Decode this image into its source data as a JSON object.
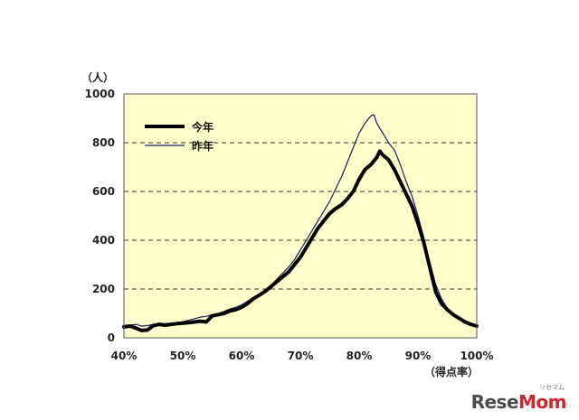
{
  "chart_data": {
    "type": "line",
    "y_unit": "（人）",
    "x_unit": "（得点率）",
    "ylim": [
      0,
      1000
    ],
    "xlim": [
      40,
      100
    ],
    "y_ticks": [
      0,
      200,
      400,
      600,
      800,
      1000
    ],
    "x_ticks": [
      40,
      50,
      60,
      70,
      80,
      90,
      100
    ],
    "x_tick_labels": [
      "40%",
      "50%",
      "60%",
      "70%",
      "80%",
      "90%",
      "100%"
    ],
    "grid": "horizontal-dashed",
    "legend_position": "top-left",
    "plot_background": "#ffffcc",
    "series": [
      {
        "name": "今年",
        "style": "thick",
        "color": "#000000",
        "points": [
          [
            40,
            45
          ],
          [
            41,
            48
          ],
          [
            42,
            40
          ],
          [
            43,
            30
          ],
          [
            44,
            32
          ],
          [
            45,
            50
          ],
          [
            46,
            55
          ],
          [
            47,
            52
          ],
          [
            48,
            55
          ],
          [
            49,
            58
          ],
          [
            50,
            60
          ],
          [
            51,
            62
          ],
          [
            52,
            65
          ],
          [
            53,
            68
          ],
          [
            54,
            65
          ],
          [
            55,
            90
          ],
          [
            56,
            95
          ],
          [
            57,
            100
          ],
          [
            58,
            110
          ],
          [
            59,
            115
          ],
          [
            60,
            125
          ],
          [
            61,
            140
          ],
          [
            62,
            160
          ],
          [
            63,
            175
          ],
          [
            64,
            190
          ],
          [
            65,
            210
          ],
          [
            66,
            230
          ],
          [
            67,
            250
          ],
          [
            68,
            270
          ],
          [
            69,
            300
          ],
          [
            70,
            330
          ],
          [
            71,
            370
          ],
          [
            72,
            410
          ],
          [
            73,
            450
          ],
          [
            74,
            480
          ],
          [
            75,
            510
          ],
          [
            76,
            530
          ],
          [
            77,
            545
          ],
          [
            78,
            570
          ],
          [
            79,
            600
          ],
          [
            80,
            650
          ],
          [
            81,
            690
          ],
          [
            82,
            710
          ],
          [
            83,
            740
          ],
          [
            83.5,
            765
          ],
          [
            84,
            750
          ],
          [
            85,
            730
          ],
          [
            86,
            690
          ],
          [
            87,
            640
          ],
          [
            88,
            590
          ],
          [
            89,
            540
          ],
          [
            90,
            470
          ],
          [
            91,
            390
          ],
          [
            92,
            290
          ],
          [
            93,
            190
          ],
          [
            94,
            140
          ],
          [
            95,
            115
          ],
          [
            96,
            95
          ],
          [
            97,
            80
          ],
          [
            98,
            65
          ],
          [
            99,
            55
          ],
          [
            100,
            48
          ]
        ]
      },
      {
        "name": "昨年",
        "style": "thin",
        "color": "#1a1a60",
        "points": [
          [
            40,
            50
          ],
          [
            41,
            52
          ],
          [
            42,
            55
          ],
          [
            43,
            48
          ],
          [
            44,
            50
          ],
          [
            45,
            55
          ],
          [
            46,
            58
          ],
          [
            47,
            58
          ],
          [
            48,
            60
          ],
          [
            49,
            62
          ],
          [
            50,
            65
          ],
          [
            51,
            72
          ],
          [
            52,
            78
          ],
          [
            53,
            85
          ],
          [
            54,
            88
          ],
          [
            55,
            95
          ],
          [
            56,
            100
          ],
          [
            57,
            108
          ],
          [
            58,
            118
          ],
          [
            59,
            125
          ],
          [
            60,
            135
          ],
          [
            61,
            150
          ],
          [
            62,
            165
          ],
          [
            63,
            180
          ],
          [
            64,
            195
          ],
          [
            65,
            215
          ],
          [
            66,
            240
          ],
          [
            67,
            265
          ],
          [
            68,
            290
          ],
          [
            69,
            320
          ],
          [
            70,
            360
          ],
          [
            71,
            400
          ],
          [
            72,
            440
          ],
          [
            73,
            480
          ],
          [
            74,
            520
          ],
          [
            75,
            560
          ],
          [
            76,
            610
          ],
          [
            77,
            660
          ],
          [
            78,
            720
          ],
          [
            79,
            780
          ],
          [
            80,
            840
          ],
          [
            81,
            880
          ],
          [
            82,
            910
          ],
          [
            82.5,
            915
          ],
          [
            83,
            880
          ],
          [
            84,
            840
          ],
          [
            85,
            800
          ],
          [
            86,
            770
          ],
          [
            87,
            710
          ],
          [
            88,
            640
          ],
          [
            89,
            580
          ],
          [
            90,
            500
          ],
          [
            91,
            410
          ],
          [
            92,
            310
          ],
          [
            93,
            220
          ],
          [
            94,
            160
          ],
          [
            95,
            120
          ],
          [
            96,
            95
          ],
          [
            97,
            78
          ],
          [
            98,
            65
          ],
          [
            99,
            55
          ],
          [
            100,
            50
          ]
        ]
      }
    ]
  },
  "watermark": {
    "text_main": "Rese",
    "text_accent": "Mom",
    "text_sub": "リセマム"
  }
}
